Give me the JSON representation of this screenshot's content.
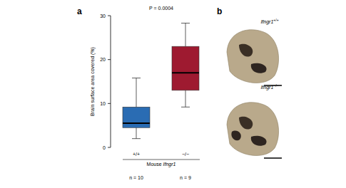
{
  "chart_data": {
    "type": "box",
    "panel_label": "a",
    "annotation": "P = 0.0004",
    "ylabel": "Brain surface area covered (%)",
    "xlabel": "Mouse Ifngr1",
    "categories": [
      "+/+",
      "−/−"
    ],
    "n_labels": [
      "n = 10",
      "n = 9"
    ],
    "min": [
      2,
      9.2
    ],
    "q1": [
      4.5,
      13
    ],
    "median": [
      5.5,
      17
    ],
    "q3": [
      9.2,
      23
    ],
    "max": [
      15.8,
      28.3
    ],
    "colors": [
      "#2a6cb3",
      "#9e1a30"
    ],
    "ylim": [
      0,
      30
    ],
    "yticks": [
      0,
      10,
      20,
      30
    ],
    "grid": false
  },
  "panel_b": {
    "panel_label": "b",
    "images": [
      {
        "gene": "Ifngr1",
        "genotype": "+/+"
      },
      {
        "gene": "Ifngr1",
        "genotype": "−/−"
      }
    ]
  }
}
